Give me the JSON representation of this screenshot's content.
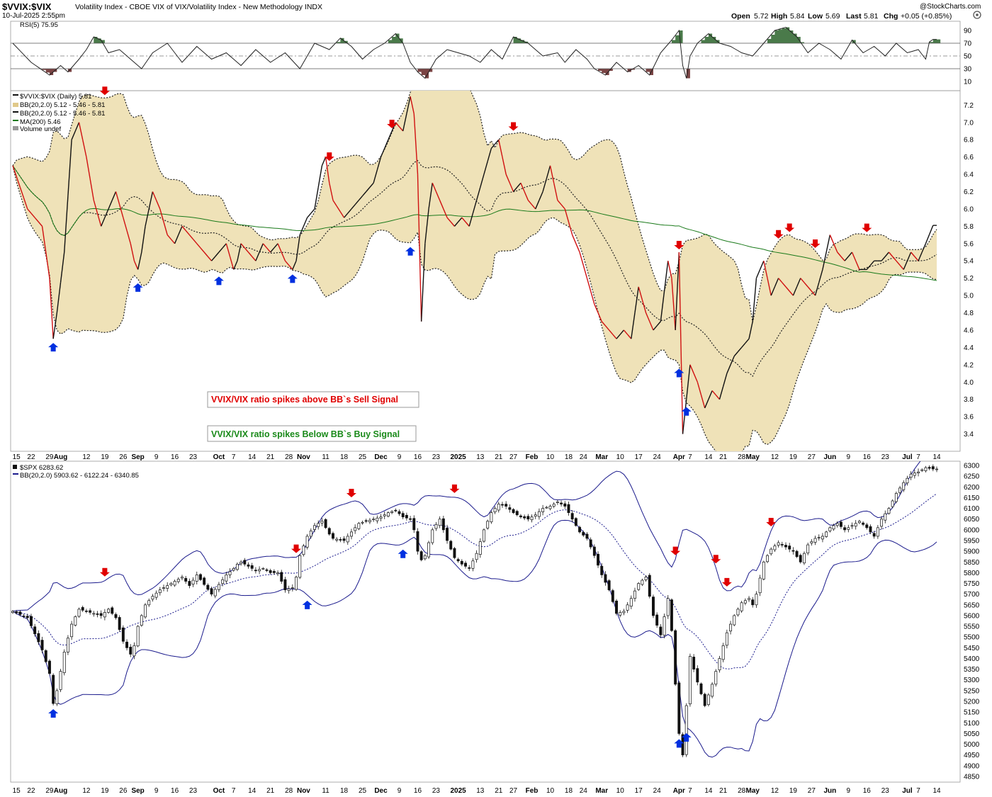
{
  "header": {
    "symbol": "$VVIX:$VIX",
    "description": "Volatility Index - CBOE VIX of VIX/Volatility Index - New Methodology  INDX",
    "date": "10-Jul-2025 2:55pm",
    "watermark": "@StockCharts.com",
    "quote": {
      "open_label": "Open",
      "open": "5.72",
      "high_label": "High",
      "high": "5.84",
      "low_label": "Low",
      "low": "5.69",
      "last_label": "Last",
      "last": "5.81",
      "chg_label": "Chg",
      "chg": "+0.05 (+0.85%)"
    }
  },
  "colors": {
    "bb_fill": "#efe2b8",
    "ratio_up": "#111111",
    "ratio_down": "#d01010",
    "ma200": "#1a7a1a",
    "spx_bb": "#1a1a8c",
    "sell_arrow": "#e00000",
    "buy_arrow": "#0030e0",
    "rsi_high": "#4a7a4a",
    "rsi_low": "#7a4444"
  },
  "annotations": {
    "sell_box": "VVIX/VIX ratio spikes above BB`s Sell Signal",
    "buy_box": "VVIX/VIX ratio spikes Below BB`s Buy Signal"
  },
  "x_axis": {
    "labels": [
      {
        "t": "15",
        "i": 1
      },
      {
        "t": "22",
        "i": 5
      },
      {
        "t": "29",
        "i": 10
      },
      {
        "t": "Aug",
        "i": 13,
        "bold": true
      },
      {
        "t": "12",
        "i": 20
      },
      {
        "t": "19",
        "i": 25
      },
      {
        "t": "26",
        "i": 30
      },
      {
        "t": "Sep",
        "i": 34,
        "bold": true
      },
      {
        "t": "9",
        "i": 39
      },
      {
        "t": "16",
        "i": 44
      },
      {
        "t": "23",
        "i": 49
      },
      {
        "t": "Oct",
        "i": 56,
        "bold": true
      },
      {
        "t": "7",
        "i": 60
      },
      {
        "t": "14",
        "i": 65
      },
      {
        "t": "21",
        "i": 70
      },
      {
        "t": "28",
        "i": 75
      },
      {
        "t": "Nov",
        "i": 79,
        "bold": true
      },
      {
        "t": "11",
        "i": 85
      },
      {
        "t": "18",
        "i": 90
      },
      {
        "t": "25",
        "i": 95
      },
      {
        "t": "Dec",
        "i": 100,
        "bold": true
      },
      {
        "t": "9",
        "i": 105
      },
      {
        "t": "16",
        "i": 110
      },
      {
        "t": "23",
        "i": 115
      },
      {
        "t": "2025",
        "i": 121,
        "bold": true
      },
      {
        "t": "13",
        "i": 127
      },
      {
        "t": "21",
        "i": 132
      },
      {
        "t": "27",
        "i": 136
      },
      {
        "t": "Feb",
        "i": 141,
        "bold": true
      },
      {
        "t": "10",
        "i": 146
      },
      {
        "t": "18",
        "i": 151
      },
      {
        "t": "24",
        "i": 155
      },
      {
        "t": "Mar",
        "i": 160,
        "bold": true
      },
      {
        "t": "10",
        "i": 165
      },
      {
        "t": "17",
        "i": 170
      },
      {
        "t": "24",
        "i": 175
      },
      {
        "t": "Apr",
        "i": 181,
        "bold": true
      },
      {
        "t": "7",
        "i": 184
      },
      {
        "t": "14",
        "i": 189
      },
      {
        "t": "21",
        "i": 193
      },
      {
        "t": "28",
        "i": 198
      },
      {
        "t": "May",
        "i": 201,
        "bold": true
      },
      {
        "t": "12",
        "i": 207
      },
      {
        "t": "19",
        "i": 212
      },
      {
        "t": "27",
        "i": 217
      },
      {
        "t": "Jun",
        "i": 222,
        "bold": true
      },
      {
        "t": "9",
        "i": 227
      },
      {
        "t": "16",
        "i": 232
      },
      {
        "t": "23",
        "i": 237
      },
      {
        "t": "Jul",
        "i": 243,
        "bold": true
      },
      {
        "t": "7",
        "i": 246
      },
      {
        "t": "14",
        "i": 251
      }
    ]
  },
  "chart_data": [
    {
      "type": "line",
      "name": "rsi-panel",
      "legend": "RSI(5) 75.95",
      "y_ticks": [
        10,
        30,
        50,
        70,
        90
      ],
      "ylim": [
        0,
        100
      ],
      "x": [
        0,
        5,
        10,
        13,
        15,
        18,
        20,
        22,
        24,
        26,
        29,
        32,
        35,
        38,
        42,
        46,
        50,
        54,
        58,
        62,
        66,
        70,
        74,
        78,
        82,
        86,
        89,
        92,
        95,
        98,
        101,
        104,
        106,
        108,
        110,
        112,
        115,
        118,
        121,
        124,
        127,
        130,
        133,
        136,
        140,
        144,
        148,
        150,
        153,
        156,
        158,
        161,
        164,
        167,
        170,
        173,
        176,
        179,
        181,
        182,
        183,
        184,
        186,
        189,
        192,
        195,
        198,
        201,
        204,
        207,
        210,
        213,
        216,
        219,
        222,
        225,
        228,
        231,
        234,
        237,
        240,
        243,
        246,
        248,
        249,
        250
      ],
      "values": [
        70,
        40,
        20,
        35,
        25,
        45,
        60,
        80,
        75,
        55,
        60,
        45,
        30,
        55,
        70,
        40,
        65,
        45,
        55,
        35,
        60,
        40,
        55,
        30,
        70,
        60,
        78,
        65,
        45,
        60,
        70,
        85,
        70,
        40,
        25,
        15,
        45,
        60,
        55,
        50,
        40,
        60,
        45,
        80,
        70,
        50,
        55,
        40,
        60,
        45,
        30,
        20,
        40,
        25,
        35,
        20,
        55,
        75,
        90,
        35,
        15,
        50,
        70,
        85,
        70,
        65,
        55,
        50,
        70,
        90,
        95,
        80,
        55,
        70,
        60,
        45,
        75,
        55,
        65,
        50,
        70,
        55,
        60,
        45,
        72,
        76
      ]
    },
    {
      "type": "line",
      "name": "vvix-vix-ratio",
      "legend": [
        "$VVIX:$VIX (Daily) 5.81",
        "BB(20,2.0) 5.12 - 5.46 - 5.81",
        "BB(20,2.0) 5.12 - 5.46 - 5.81",
        "MA(200) 5.46",
        "Volume undef"
      ],
      "y_ticks": [
        3.4,
        3.6,
        3.8,
        4.0,
        4.2,
        4.4,
        4.6,
        4.8,
        5.0,
        5.2,
        5.4,
        5.6,
        5.8,
        6.0,
        6.2,
        6.4,
        6.6,
        6.8,
        7.0,
        7.2
      ],
      "ylim": [
        3.2,
        7.35
      ],
      "x": [
        0,
        4,
        8,
        10,
        11,
        12,
        14,
        16,
        18,
        20,
        22,
        24,
        26,
        28,
        30,
        32,
        33,
        34,
        35,
        36,
        38,
        40,
        42,
        44,
        46,
        48,
        50,
        54,
        58,
        60,
        61,
        62,
        64,
        66,
        68,
        70,
        72,
        74,
        76,
        77,
        78,
        80,
        82,
        84,
        85,
        86,
        87,
        90,
        94,
        98,
        100,
        102,
        104,
        106,
        108,
        109,
        110,
        111,
        112,
        113,
        114,
        116,
        118,
        120,
        122,
        124,
        126,
        128,
        130,
        132,
        134,
        136,
        138,
        140,
        142,
        144,
        146,
        148,
        150,
        152,
        154,
        156,
        158,
        160,
        162,
        164,
        166,
        168,
        170,
        172,
        174,
        176,
        178,
        179,
        180,
        181,
        182,
        184,
        186,
        188,
        190,
        192,
        194,
        196,
        198,
        200,
        201,
        202,
        204,
        206,
        208,
        210,
        212,
        214,
        216,
        218,
        220,
        222,
        224,
        226,
        228,
        230,
        232,
        234,
        236,
        238,
        240,
        242,
        244,
        246,
        248,
        250
      ],
      "values": [
        6.5,
        6.0,
        5.8,
        5.2,
        4.5,
        4.8,
        5.5,
        6.8,
        7.0,
        6.6,
        6.1,
        5.8,
        6.0,
        6.2,
        5.9,
        5.6,
        5.4,
        5.3,
        5.5,
        5.8,
        6.2,
        6.0,
        5.7,
        5.6,
        5.8,
        5.7,
        5.6,
        5.4,
        5.6,
        5.3,
        5.4,
        5.6,
        5.5,
        5.4,
        5.6,
        5.5,
        5.6,
        5.4,
        5.3,
        5.4,
        5.7,
        5.9,
        6.0,
        6.5,
        6.6,
        6.3,
        6.1,
        5.9,
        6.1,
        6.3,
        6.6,
        6.8,
        7.0,
        6.9,
        7.3,
        7.1,
        6.4,
        4.7,
        5.6,
        6.0,
        6.3,
        6.1,
        5.9,
        5.8,
        5.9,
        5.8,
        6.1,
        6.4,
        6.7,
        6.8,
        6.4,
        6.2,
        6.3,
        6.1,
        6.0,
        6.2,
        6.5,
        6.1,
        6.0,
        5.7,
        5.5,
        5.2,
        4.9,
        4.7,
        4.6,
        4.5,
        4.6,
        4.5,
        5.1,
        4.8,
        4.6,
        4.7,
        5.4,
        5.2,
        4.6,
        5.5,
        3.4,
        4.2,
        4.0,
        3.7,
        3.9,
        3.8,
        4.1,
        4.3,
        4.4,
        4.5,
        4.7,
        5.2,
        5.4,
        5.0,
        5.2,
        5.1,
        5.0,
        5.2,
        5.1,
        5.0,
        5.3,
        5.7,
        5.5,
        5.4,
        5.5,
        5.3,
        5.3,
        5.4,
        5.4,
        5.5,
        5.4,
        5.3,
        5.5,
        5.4,
        5.6,
        5.81
      ],
      "sell_signals_x": [
        25,
        86,
        103,
        136,
        181,
        208,
        211,
        218,
        232
      ],
      "buy_signals_x": [
        11,
        34,
        56,
        76,
        108,
        181,
        183
      ]
    },
    {
      "type": "candlestick",
      "name": "spx",
      "legend": [
        "$SPX 6283.62",
        "BB(20,2.0) 5903.62 - 6122.24 - 6340.85"
      ],
      "y_ticks": [
        4850,
        4900,
        4950,
        5000,
        5050,
        5100,
        5150,
        5200,
        5250,
        5300,
        5350,
        5400,
        5450,
        5500,
        5550,
        5600,
        5650,
        5700,
        5750,
        5800,
        5850,
        5900,
        5950,
        6000,
        6050,
        6100,
        6150,
        6200,
        6250,
        6300
      ],
      "ylim": [
        4830,
        6320
      ],
      "x": [
        0,
        4,
        8,
        10,
        11,
        12,
        14,
        16,
        18,
        20,
        22,
        24,
        26,
        28,
        30,
        32,
        33,
        34,
        35,
        36,
        38,
        40,
        42,
        44,
        46,
        48,
        50,
        54,
        58,
        60,
        61,
        62,
        64,
        66,
        68,
        70,
        72,
        74,
        76,
        77,
        78,
        80,
        82,
        84,
        85,
        86,
        87,
        90,
        94,
        98,
        100,
        102,
        104,
        106,
        108,
        109,
        110,
        111,
        112,
        113,
        114,
        116,
        118,
        120,
        122,
        124,
        126,
        128,
        130,
        132,
        134,
        136,
        138,
        140,
        142,
        144,
        146,
        148,
        150,
        152,
        154,
        156,
        158,
        160,
        162,
        164,
        166,
        168,
        170,
        172,
        174,
        176,
        178,
        179,
        180,
        181,
        182,
        184,
        186,
        188,
        190,
        192,
        194,
        196,
        198,
        200,
        201,
        202,
        204,
        206,
        208,
        210,
        212,
        214,
        216,
        218,
        220,
        222,
        224,
        226,
        228,
        230,
        232,
        234,
        236,
        238,
        240,
        242,
        244,
        246,
        248,
        250
      ],
      "values": [
        5620,
        5590,
        5440,
        5330,
        5190,
        5250,
        5430,
        5560,
        5630,
        5620,
        5610,
        5600,
        5630,
        5590,
        5480,
        5420,
        5460,
        5550,
        5600,
        5650,
        5690,
        5720,
        5740,
        5760,
        5780,
        5740,
        5790,
        5700,
        5790,
        5820,
        5840,
        5850,
        5830,
        5810,
        5820,
        5800,
        5800,
        5720,
        5730,
        5780,
        5880,
        5970,
        6020,
        6040,
        6010,
        5980,
        5960,
        5950,
        6030,
        6050,
        6060,
        6080,
        6090,
        6060,
        6050,
        6000,
        5900,
        5860,
        5880,
        5940,
        6000,
        6050,
        5950,
        5870,
        5840,
        5820,
        5890,
        6000,
        6080,
        6120,
        6110,
        6080,
        6060,
        6050,
        6070,
        6100,
        6110,
        6130,
        6110,
        6050,
        5990,
        5960,
        5880,
        5790,
        5720,
        5610,
        5620,
        5680,
        5750,
        5780,
        5600,
        5510,
        5680,
        5530,
        5280,
        5050,
        4950,
        5410,
        5290,
        5180,
        5280,
        5400,
        5520,
        5600,
        5660,
        5680,
        5650,
        5700,
        5850,
        5910,
        5940,
        5920,
        5900,
        5850,
        5930,
        5960,
        5970,
        6010,
        6030,
        6000,
        6020,
        6040,
        6010,
        5970,
        6050,
        6100,
        6170,
        6220,
        6260,
        6270,
        6290,
        6283.62
      ],
      "sell_signals_x": [
        25,
        77,
        92,
        120,
        180,
        191,
        194,
        206
      ],
      "buy_signals_x": [
        11,
        80,
        106,
        181,
        183
      ]
    }
  ]
}
